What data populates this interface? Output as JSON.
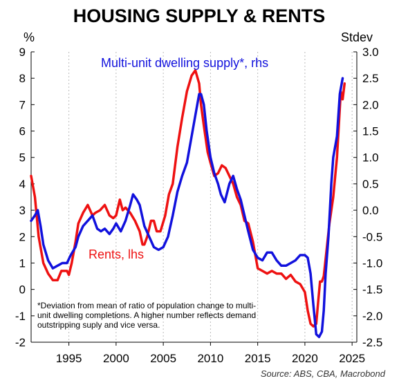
{
  "chart_data": {
    "type": "line",
    "title": "HOUSING SUPPLY & RENTS",
    "ylabel_left": "%",
    "ylabel_right": "Stdev",
    "xlim": [
      1991,
      2025.5
    ],
    "ylim_left": [
      -2,
      9
    ],
    "ylim_right": [
      -2.5,
      3.0
    ],
    "x_ticks": [
      1995,
      2000,
      2005,
      2010,
      2015,
      2020,
      2025
    ],
    "y_ticks_left": [
      "-2",
      "-1",
      "0",
      "1",
      "2",
      "3",
      "4",
      "5",
      "6",
      "7",
      "8",
      "9"
    ],
    "y_ticks_right": [
      "-2.5",
      "-2.0",
      "-1.5",
      "-1.0",
      "-0.5",
      "0.0",
      "0.5",
      "1.0",
      "1.5",
      "2.0",
      "2.5",
      "3.0"
    ],
    "grid": "vertical dotted",
    "series": [
      {
        "name": "Rents, lhs",
        "axis": "left",
        "color": "#ee1111",
        "x": [
          1991.0,
          1991.4,
          1991.8,
          1992.3,
          1992.8,
          1993.3,
          1993.8,
          1994.2,
          1994.8,
          1995.0,
          1995.3,
          1995.7,
          1996.0,
          1996.5,
          1997.0,
          1997.5,
          1997.8,
          1998.3,
          1998.8,
          1999.3,
          1999.7,
          2000.0,
          2000.4,
          2000.7,
          2001.0,
          2001.5,
          2002.0,
          2002.5,
          2002.8,
          2003.0,
          2003.3,
          2003.7,
          2004.0,
          2004.3,
          2004.7,
          2005.2,
          2005.6,
          2006.0,
          2006.5,
          2007.0,
          2007.5,
          2008.0,
          2008.4,
          2008.8,
          2009.0,
          2009.3,
          2009.7,
          2010.0,
          2010.4,
          2010.8,
          2011.2,
          2011.6,
          2012.0,
          2012.4,
          2012.8,
          2013.2,
          2013.6,
          2014.0,
          2014.5,
          2015.0,
          2015.5,
          2016.0,
          2016.5,
          2017.0,
          2017.5,
          2018.0,
          2018.5,
          2019.0,
          2019.5,
          2020.0,
          2020.3,
          2020.6,
          2020.9,
          2021.2,
          2021.4,
          2021.6,
          2021.8,
          2022.0,
          2022.3,
          2022.6,
          2023.0,
          2023.4,
          2023.8,
          2024.0,
          2024.2
        ],
        "values": [
          4.3,
          3.5,
          2.0,
          1.0,
          0.6,
          0.35,
          0.35,
          0.7,
          0.7,
          0.55,
          1.0,
          1.8,
          2.5,
          2.9,
          3.2,
          2.8,
          2.9,
          3.0,
          3.2,
          2.8,
          2.7,
          2.8,
          3.4,
          3.0,
          3.1,
          2.9,
          2.6,
          2.2,
          1.7,
          1.7,
          2.0,
          2.6,
          2.6,
          2.2,
          2.2,
          2.8,
          3.6,
          4.0,
          5.4,
          6.5,
          7.5,
          8.1,
          8.3,
          7.8,
          7.0,
          6.2,
          5.2,
          4.8,
          4.3,
          4.4,
          4.7,
          4.6,
          4.3,
          4.0,
          3.5,
          3.2,
          2.6,
          2.5,
          1.8,
          0.8,
          0.7,
          0.6,
          0.7,
          0.6,
          0.6,
          0.4,
          0.55,
          0.3,
          0.2,
          -0.1,
          -0.8,
          -1.3,
          -1.4,
          -1.3,
          -0.5,
          0.3,
          0.3,
          0.5,
          1.5,
          2.5,
          3.5,
          5.0,
          7.5,
          7.2,
          7.8
        ]
      },
      {
        "name": "Multi-unit dwelling supply*, rhs",
        "axis": "right",
        "color": "#1111dd",
        "x": [
          1991.0,
          1991.4,
          1991.7,
          1992.0,
          1992.3,
          1992.8,
          1993.3,
          1993.8,
          1994.3,
          1994.8,
          1995.2,
          1995.7,
          1996.0,
          1996.5,
          1997.0,
          1997.5,
          1998.0,
          1998.4,
          1998.8,
          1999.3,
          1999.7,
          2000.0,
          2000.5,
          2001.0,
          2001.5,
          2001.8,
          2002.2,
          2002.5,
          2003.0,
          2003.5,
          2004.0,
          2004.5,
          2005.0,
          2005.5,
          2006.0,
          2006.5,
          2007.0,
          2007.5,
          2008.0,
          2008.5,
          2008.8,
          2009.0,
          2009.3,
          2009.6,
          2010.0,
          2010.4,
          2010.8,
          2011.1,
          2011.5,
          2012.0,
          2012.4,
          2012.8,
          2013.2,
          2013.6,
          2014.0,
          2014.5,
          2015.0,
          2015.5,
          2016.0,
          2016.5,
          2017.0,
          2017.5,
          2018.0,
          2018.5,
          2019.0,
          2019.5,
          2020.0,
          2020.3,
          2020.6,
          2020.9,
          2021.2,
          2021.5,
          2021.8,
          2022.0,
          2022.2,
          2022.5,
          2022.8,
          2023.0,
          2023.4,
          2023.7,
          2024.0
        ],
        "values": [
          -0.2,
          -0.1,
          0.0,
          -0.3,
          -0.65,
          -0.95,
          -1.1,
          -1.05,
          -1.0,
          -1.0,
          -0.85,
          -0.7,
          -0.5,
          -0.3,
          -0.2,
          -0.1,
          -0.35,
          -0.4,
          -0.35,
          -0.45,
          -0.35,
          -0.25,
          -0.4,
          -0.2,
          0.1,
          0.3,
          0.2,
          0.1,
          -0.3,
          -0.5,
          -0.7,
          -0.75,
          -0.7,
          -0.5,
          -0.1,
          0.35,
          0.65,
          0.9,
          1.4,
          1.9,
          2.2,
          2.2,
          2.0,
          1.5,
          1.0,
          0.7,
          0.5,
          0.3,
          0.15,
          0.5,
          0.65,
          0.4,
          0.2,
          -0.1,
          -0.4,
          -0.75,
          -0.9,
          -0.95,
          -0.8,
          -0.8,
          -0.95,
          -1.05,
          -1.05,
          -1.0,
          -0.95,
          -0.85,
          -0.85,
          -0.9,
          -1.2,
          -1.8,
          -2.35,
          -2.4,
          -2.3,
          -1.9,
          -1.2,
          -0.5,
          0.5,
          1.0,
          1.4,
          2.2,
          2.5
        ]
      }
    ],
    "labels": {
      "rents": "Rents, lhs",
      "supply": "Multi-unit dwelling supply*, rhs"
    },
    "note_lines": [
      "*Deviation from mean of ratio of population change to multi-",
      "unit dwelling completions. A higher number reflects demand",
      "outstripping suply and vice versa."
    ],
    "source": "Source: ABS, CBA, Macrobond"
  }
}
